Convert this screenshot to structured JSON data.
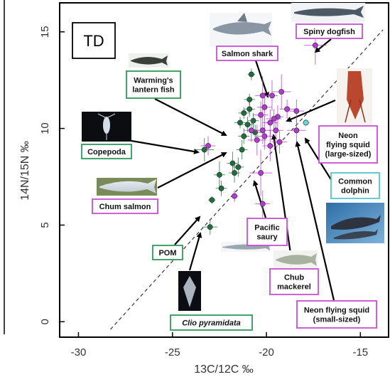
{
  "chart_data": {
    "type": "scatter",
    "title": "",
    "panel_label": "TD",
    "xlabel": "13C/12C ‰",
    "ylabel": "14N/15N ‰",
    "xlim": [
      -31,
      -13.5
    ],
    "ylim": [
      -0.8,
      16.5
    ],
    "x_ticks": [
      -30,
      -25,
      -20,
      -15
    ],
    "y_ticks": [
      0,
      5,
      10,
      15
    ],
    "grid": false,
    "legend": "none",
    "colors": {
      "green": "#1f6f3d",
      "magenta": "#b23ad0",
      "cyan": "#6fd6d6",
      "green_box": "#2e9a5a",
      "magenta_box": "#c84fd6",
      "cyan_box": "#52c8c8"
    },
    "reference_line": {
      "style": "dashed",
      "x": [
        -28.3,
        -13.8
      ],
      "y": [
        -0.4,
        15.1
      ]
    },
    "series": [
      {
        "color": "green",
        "points": [
          {
            "x": -23.0,
            "y": 4.9,
            "xerr": 0.4,
            "yerr": 0.4
          },
          {
            "x": -22.9,
            "y": 6.3,
            "xerr": 0.2,
            "yerr": 0.2
          },
          {
            "x": -23.3,
            "y": 8.9,
            "xerr": 0.5,
            "yerr": 0.6
          },
          {
            "x": -22.5,
            "y": 7.6,
            "xerr": 0.3,
            "yerr": 0.7
          },
          {
            "x": -22.4,
            "y": 6.9,
            "xerr": 0.3,
            "yerr": 0.4
          },
          {
            "x": -21.8,
            "y": 8.2,
            "xerr": 0.3,
            "yerr": 0.6
          },
          {
            "x": -21.7,
            "y": 7.7,
            "xerr": 0.3,
            "yerr": 0.5
          },
          {
            "x": -21.5,
            "y": 8.0,
            "xerr": 0.3,
            "yerr": 0.5
          },
          {
            "x": -21.3,
            "y": 8.9,
            "xerr": 0.3,
            "yerr": 0.5
          },
          {
            "x": -21.2,
            "y": 9.6,
            "xerr": 0.3,
            "yerr": 0.4
          },
          {
            "x": -21.4,
            "y": 10.3,
            "xerr": 0.3,
            "yerr": 0.3
          },
          {
            "x": -21.0,
            "y": 10.2,
            "xerr": 0.3,
            "yerr": 0.4
          },
          {
            "x": -21.2,
            "y": 10.8,
            "xerr": 0.3,
            "yerr": 0.3
          },
          {
            "x": -20.9,
            "y": 11.0,
            "xerr": 0.3,
            "yerr": 0.4
          },
          {
            "x": -20.7,
            "y": 10.4,
            "xerr": 0.3,
            "yerr": 0.4
          },
          {
            "x": -20.6,
            "y": 9.8,
            "xerr": 0.3,
            "yerr": 0.4
          },
          {
            "x": -20.8,
            "y": 12.8,
            "xerr": 0.2,
            "yerr": 0.3
          },
          {
            "x": -20.9,
            "y": 11.5,
            "xerr": 0.3,
            "yerr": 0.3
          }
        ]
      },
      {
        "color": "magenta",
        "points": [
          {
            "x": -17.4,
            "y": 14.3,
            "xerr": 0.6,
            "yerr": 1.0
          },
          {
            "x": -19.7,
            "y": 11.7,
            "xerr": 0.3,
            "yerr": 0.8
          },
          {
            "x": -19.2,
            "y": 11.9,
            "xerr": 0.5,
            "yerr": 0.9
          },
          {
            "x": -18.9,
            "y": 11.0,
            "xerr": 0.4,
            "yerr": 0.5
          },
          {
            "x": -18.4,
            "y": 10.9,
            "xerr": 0.4,
            "yerr": 0.6
          },
          {
            "x": -20.2,
            "y": 11.7,
            "xerr": 0.4,
            "yerr": 1.0
          },
          {
            "x": -20.1,
            "y": 11.1,
            "xerr": 0.4,
            "yerr": 0.8
          },
          {
            "x": -20.3,
            "y": 10.7,
            "xerr": 0.4,
            "yerr": 0.7
          },
          {
            "x": -19.8,
            "y": 10.3,
            "xerr": 0.4,
            "yerr": 0.7
          },
          {
            "x": -19.4,
            "y": 10.6,
            "xerr": 0.3,
            "yerr": 0.6
          },
          {
            "x": -20.5,
            "y": 9.4,
            "xerr": 0.5,
            "yerr": 0.8
          },
          {
            "x": -20.1,
            "y": 9.6,
            "xerr": 0.5,
            "yerr": 0.7
          },
          {
            "x": -19.8,
            "y": 9.1,
            "xerr": 0.4,
            "yerr": 0.8
          },
          {
            "x": -19.5,
            "y": 9.9,
            "xerr": 0.4,
            "yerr": 0.7
          },
          {
            "x": -19.3,
            "y": 9.3,
            "xerr": 0.4,
            "yerr": 0.6
          },
          {
            "x": -20.2,
            "y": 9.9,
            "xerr": 0.4,
            "yerr": 0.7
          },
          {
            "x": -20.3,
            "y": 7.7,
            "xerr": 0.6,
            "yerr": 1.2
          },
          {
            "x": -20.2,
            "y": 6.1,
            "xerr": 0.4,
            "yerr": 0.7
          },
          {
            "x": -23.1,
            "y": 9.1,
            "xerr": 0.4,
            "yerr": 0.5
          },
          {
            "x": -18.4,
            "y": 9.9,
            "xerr": 0.5,
            "yerr": 0.6
          },
          {
            "x": -19.6,
            "y": 10.5,
            "xerr": 0.4,
            "yerr": 0.5
          },
          {
            "x": -20.8,
            "y": 9.9,
            "xerr": 0.4,
            "yerr": 0.6
          },
          {
            "x": -21.7,
            "y": 6.5,
            "xerr": 0.2,
            "yerr": 0.3
          }
        ]
      },
      {
        "color": "cyan",
        "points": [
          {
            "x": -17.9,
            "y": 10.3,
            "xerr": 0.2,
            "yerr": 0.2
          }
        ]
      }
    ],
    "annotations": [
      {
        "text": "Salmon shark",
        "color": "magenta"
      },
      {
        "text": "Spiny dogfish",
        "color": "magenta"
      },
      {
        "text": "Warming's lantern fish",
        "color": "green"
      },
      {
        "text": "Copepoda",
        "color": "green"
      },
      {
        "text": "Chum salmon",
        "color": "magenta"
      },
      {
        "text": "POM",
        "color": "green"
      },
      {
        "text": "Clio pyramidata",
        "color": "green"
      },
      {
        "text": "Pacific saury",
        "color": "magenta"
      },
      {
        "text": "Chub mackerel",
        "color": "magenta"
      },
      {
        "text": "Neon flying squid (large-sized)",
        "color": "magenta"
      },
      {
        "text": "Common dolphin",
        "color": "cyan"
      },
      {
        "text": "Neon flying squid (small-sized)",
        "color": "magenta"
      }
    ]
  }
}
